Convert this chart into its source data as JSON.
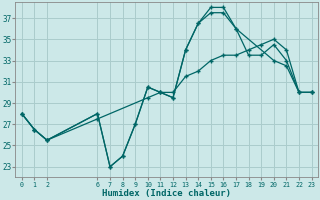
{
  "xlabel": "Humidex (Indice chaleur)",
  "bg_color": "#cce8e8",
  "grid_color": "#aacccc",
  "line_color": "#006666",
  "xlim": [
    -0.5,
    23.5
  ],
  "ylim": [
    22.0,
    38.5
  ],
  "yticks": [
    23,
    25,
    27,
    29,
    31,
    33,
    35,
    37
  ],
  "xticks": [
    0,
    1,
    2,
    6,
    7,
    8,
    9,
    10,
    11,
    12,
    13,
    14,
    15,
    16,
    17,
    18,
    19,
    20,
    21,
    22,
    23
  ],
  "line1_x": [
    0,
    1,
    2,
    6,
    7,
    8,
    9,
    10,
    11,
    12,
    13,
    14,
    15,
    16,
    17,
    20,
    21,
    22,
    23
  ],
  "line1_y": [
    28,
    26.5,
    25.5,
    28,
    23,
    24,
    27,
    30.5,
    30,
    29.5,
    34,
    36.5,
    38,
    38,
    36,
    33,
    32.5,
    30,
    30
  ],
  "line2_x": [
    0,
    1,
    2,
    6,
    7,
    8,
    9,
    10,
    11,
    12,
    13,
    14,
    15,
    16,
    17,
    18,
    19,
    20,
    21,
    22,
    23
  ],
  "line2_y": [
    28,
    26.5,
    25.5,
    28,
    23,
    24,
    27,
    30.5,
    30,
    29.5,
    34,
    36.5,
    37.5,
    37.5,
    36,
    33.5,
    33.5,
    34.5,
    33,
    30,
    30
  ],
  "line3_x": [
    0,
    1,
    2,
    6,
    10,
    11,
    12,
    13,
    14,
    15,
    16,
    17,
    18,
    19,
    20,
    21,
    22,
    23
  ],
  "line3_y": [
    28,
    26.5,
    25.5,
    27.5,
    29.5,
    30,
    30,
    31.5,
    32,
    33,
    33.5,
    33.5,
    34,
    34.5,
    35,
    34,
    30,
    30
  ]
}
